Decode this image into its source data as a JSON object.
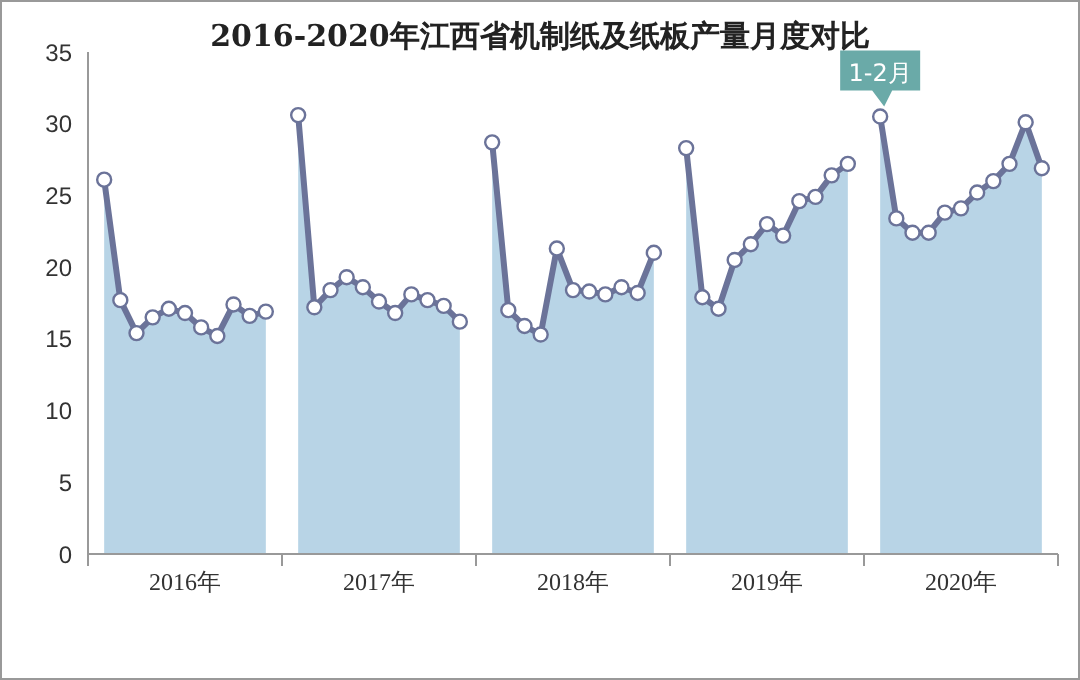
{
  "chart_data": {
    "type": "area",
    "title": "2016-2020年江西省机制纸及纸板产量月度对比",
    "categories": [
      null,
      null,
      null,
      null,
      null,
      "2016年",
      null,
      null,
      null,
      null,
      null,
      null,
      null,
      null,
      null,
      null,
      null,
      "2017年",
      null,
      null,
      null,
      null,
      null,
      null,
      null,
      null,
      null,
      null,
      null,
      "2018年",
      null,
      null,
      null,
      null,
      null,
      null,
      null,
      null,
      null,
      null,
      null,
      "2019年",
      null,
      null,
      null,
      null,
      null,
      null,
      null,
      null,
      null,
      null,
      null,
      "2020年",
      null,
      null,
      null,
      null,
      null,
      null
    ],
    "series": [
      {
        "color": "#b8d4e6",
        "values": [
          26.1,
          17.7,
          15.4,
          16.5,
          17.1,
          16.8,
          15.8,
          15.2,
          17.4,
          16.6,
          16.9,
          null,
          null,
          null,
          null,
          null,
          null,
          null,
          null,
          null,
          null,
          null,
          null,
          null,
          null,
          null,
          null,
          null,
          null,
          null,
          null,
          null,
          null,
          null,
          null,
          null,
          null,
          null,
          null,
          null,
          null,
          null,
          null,
          null,
          null,
          null,
          null,
          null,
          null,
          null,
          null,
          null,
          null,
          null,
          null,
          null,
          null,
          null,
          null,
          null
        ]
      },
      {
        "color": "#b8d4e6",
        "values": [
          null,
          null,
          null,
          null,
          null,
          null,
          null,
          null,
          null,
          null,
          null,
          null,
          30.6,
          17.2,
          18.4,
          19.3,
          18.6,
          17.6,
          16.8,
          18.1,
          17.7,
          17.3,
          16.2,
          null,
          null,
          null,
          null,
          null,
          null,
          null,
          null,
          null,
          null,
          null,
          null,
          null,
          null,
          null,
          null,
          null,
          null,
          null,
          null,
          null,
          null,
          null,
          null,
          null,
          null,
          null,
          null,
          null,
          null,
          null,
          null,
          null,
          null,
          null,
          null,
          null
        ]
      },
      {
        "color": "#b8d4e6",
        "values": [
          null,
          null,
          null,
          null,
          null,
          null,
          null,
          null,
          null,
          null,
          null,
          null,
          null,
          null,
          null,
          null,
          null,
          null,
          null,
          null,
          null,
          null,
          null,
          null,
          28.7,
          17.0,
          15.9,
          15.3,
          21.3,
          18.4,
          18.3,
          18.1,
          18.6,
          18.2,
          21.0,
          null,
          null,
          null,
          null,
          null,
          null,
          null,
          null,
          null,
          null,
          null,
          null,
          null,
          null,
          null,
          null,
          null,
          null,
          null,
          null,
          null,
          null,
          null,
          null,
          null
        ]
      },
      {
        "color": "#b8d4e6",
        "values": [
          null,
          null,
          null,
          null,
          null,
          null,
          null,
          null,
          null,
          null,
          null,
          null,
          null,
          null,
          null,
          null,
          null,
          null,
          null,
          null,
          null,
          null,
          null,
          null,
          null,
          null,
          null,
          null,
          null,
          null,
          null,
          null,
          null,
          null,
          null,
          null,
          28.3,
          17.9,
          17.1,
          20.5,
          21.6,
          23.0,
          22.2,
          24.6,
          24.9,
          26.4,
          27.2,
          null,
          null,
          null,
          null,
          null,
          null,
          null,
          null,
          null,
          null,
          null,
          null,
          null
        ]
      },
      {
        "color": "#b8d4e6",
        "values": [
          null,
          null,
          null,
          null,
          null,
          null,
          null,
          null,
          null,
          null,
          null,
          null,
          null,
          null,
          null,
          null,
          null,
          null,
          null,
          null,
          null,
          null,
          null,
          null,
          null,
          null,
          null,
          null,
          null,
          null,
          null,
          null,
          null,
          null,
          null,
          null,
          null,
          null,
          null,
          null,
          null,
          null,
          null,
          null,
          null,
          null,
          null,
          null,
          30.5,
          23.4,
          22.4,
          22.4,
          23.8,
          24.1,
          25.2,
          26.0,
          27.2,
          30.1,
          26.9,
          null
        ]
      }
    ],
    "ylim": [
      0,
      35
    ],
    "yticks": [
      0,
      5,
      10,
      15,
      20,
      25,
      30,
      35
    ],
    "marker": "circle",
    "annotations": [
      {
        "text": "1-2月",
        "y": 30.5
      }
    ]
  }
}
